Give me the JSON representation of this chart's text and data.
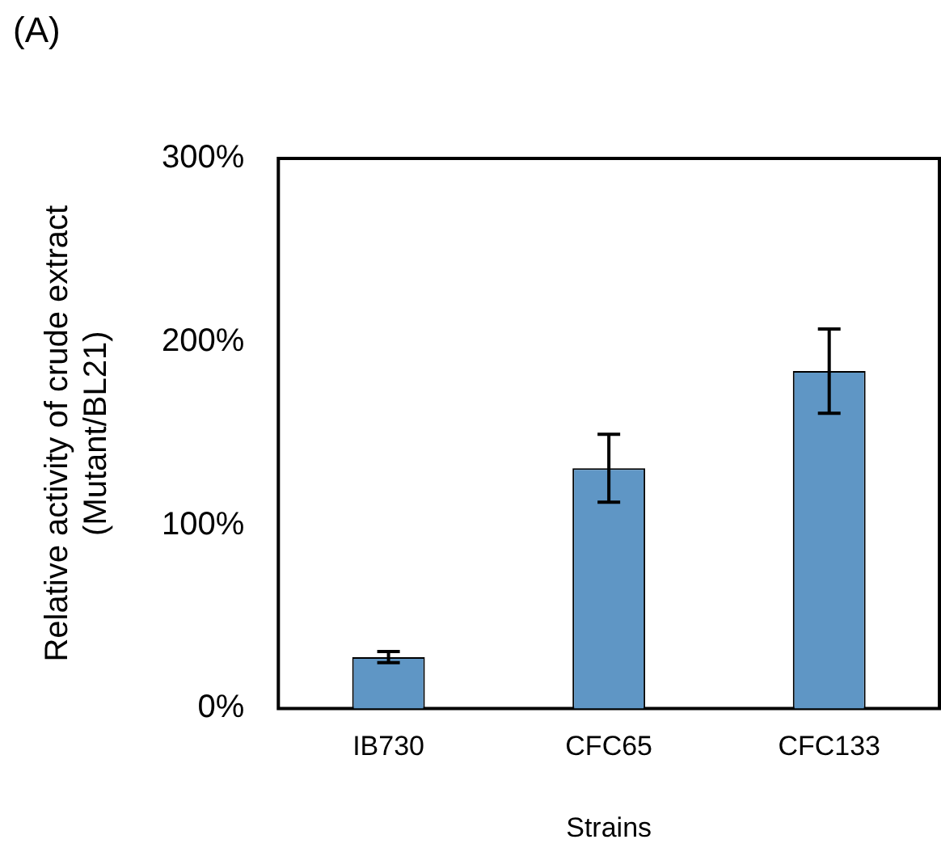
{
  "chart_data": {
    "type": "bar",
    "annotations": [
      "(A)"
    ],
    "xlabel": "Strains",
    "ylabel": "Relative activity of crude extract\n(Mutant/BL21)",
    "categories": [
      "IB730",
      "CFC65",
      "CFC133"
    ],
    "values": [
      28,
      131,
      184
    ],
    "errors": [
      3,
      18.5,
      23
    ],
    "color": "#5f96c5",
    "ylim": [
      0,
      300
    ],
    "yticks": [
      {
        "value": 0,
        "label": "0%"
      },
      {
        "value": 100,
        "label": "100%"
      },
      {
        "value": 200,
        "label": "200%"
      },
      {
        "value": 300,
        "label": "300%"
      }
    ],
    "grid": false,
    "legend": false
  }
}
